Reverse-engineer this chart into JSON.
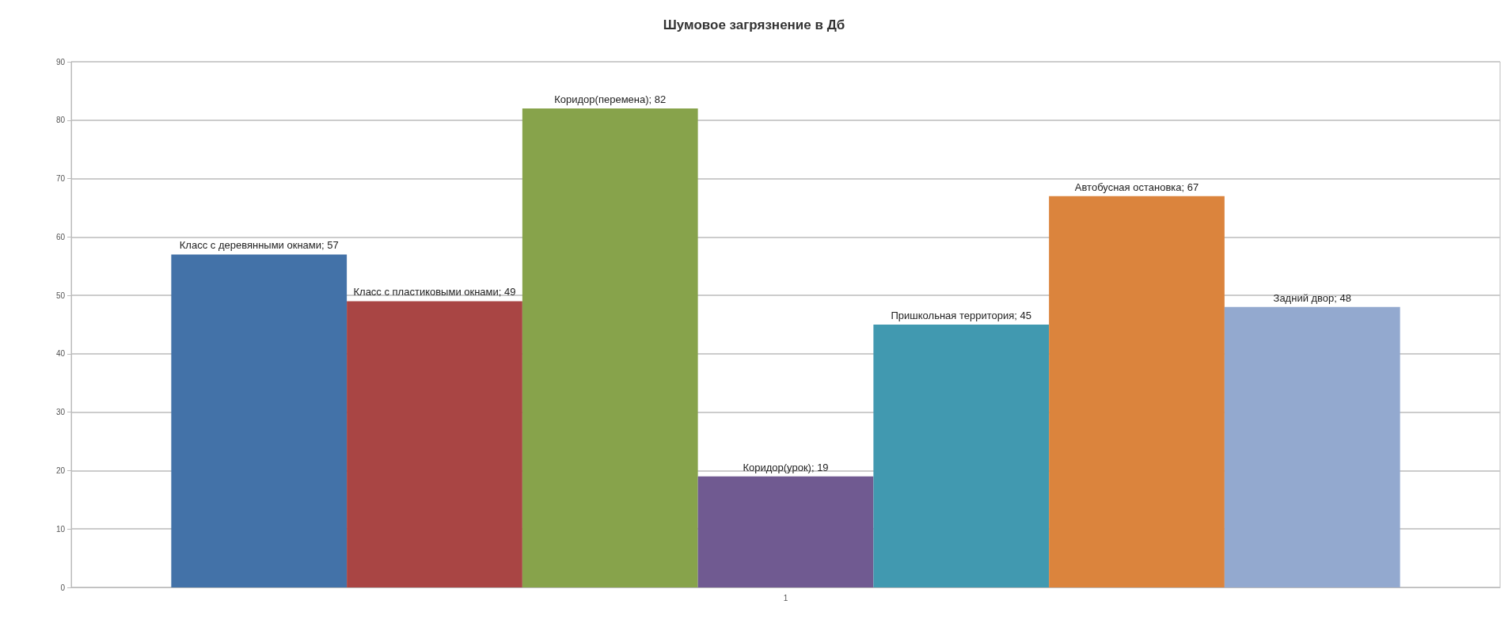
{
  "chart_data": {
    "type": "bar",
    "title": "Шумовое загрязнение в Дб",
    "categories": [
      "1"
    ],
    "series": [
      {
        "color": "#4372a8",
        "values": [
          57
        ],
        "value_labels": [
          "Класс с деревянными окнами; 57"
        ]
      },
      {
        "color": "#a94544",
        "values": [
          49
        ],
        "value_labels": [
          "Класс с пластиковыми окнами; 49"
        ]
      },
      {
        "color": "#87a34b",
        "values": [
          82
        ],
        "value_labels": [
          "Коридор(перемена); 82"
        ]
      },
      {
        "color": "#705a91",
        "values": [
          19
        ],
        "value_labels": [
          "Коридор(урок); 19"
        ]
      },
      {
        "color": "#4199b0",
        "values": [
          45
        ],
        "value_labels": [
          "Пришкольная территория; 45"
        ]
      },
      {
        "color": "#db843d",
        "values": [
          67
        ],
        "value_labels": [
          "Автобусная остановка; 67"
        ]
      },
      {
        "color": "#93a9cf",
        "values": [
          48
        ],
        "value_labels": [
          "Задний двор; 48"
        ]
      }
    ],
    "ylim": [
      0,
      90
    ],
    "yticks": [
      0,
      10,
      20,
      30,
      40,
      50,
      60,
      70,
      80,
      90
    ],
    "grid": "y"
  }
}
